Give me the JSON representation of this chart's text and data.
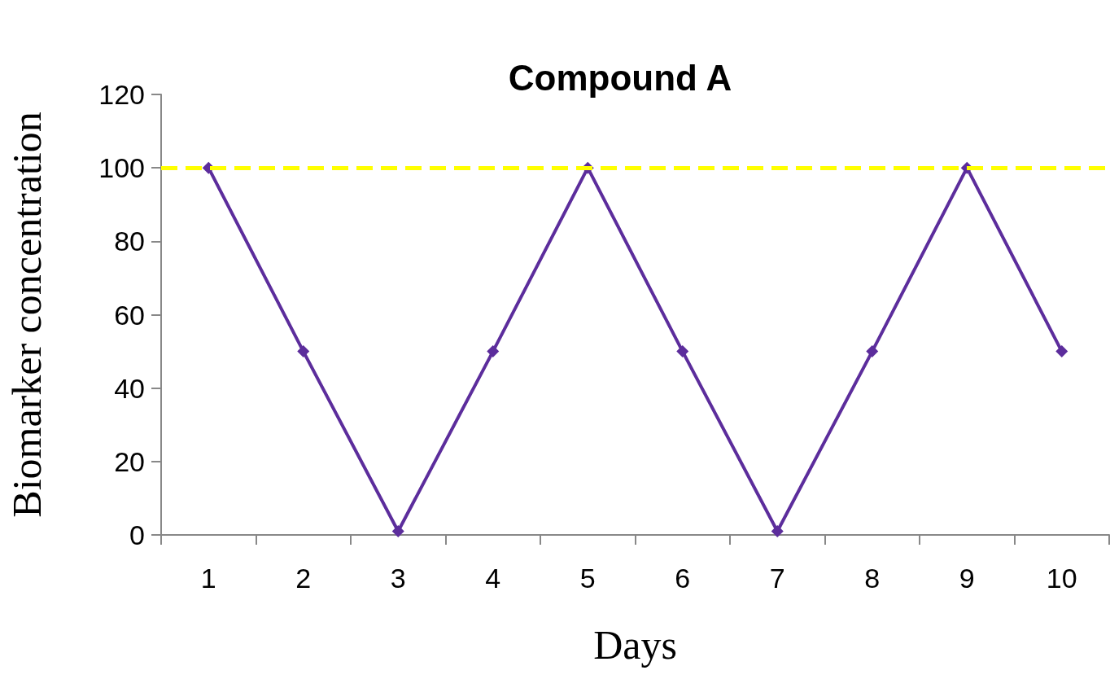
{
  "chart_data": {
    "type": "line",
    "title": "Compound A",
    "xlabel": "Days",
    "ylabel": "Biomarker concentration",
    "categories": [
      "1",
      "2",
      "3",
      "4",
      "5",
      "6",
      "7",
      "8",
      "9",
      "10"
    ],
    "series": [
      {
        "color": "#5c2d9c",
        "values": [
          100,
          50,
          1,
          50,
          100,
          50,
          1,
          50,
          100,
          50
        ]
      }
    ],
    "ylim": [
      0,
      120
    ],
    "yticks": [
      0,
      20,
      40,
      60,
      80,
      100,
      120
    ],
    "ref_lines": [
      {
        "axis": "y",
        "value": 100,
        "color": "#ffff00",
        "line_style": "dashed"
      }
    ],
    "marker": "diamond",
    "line_style": "solid",
    "grid": false
  }
}
